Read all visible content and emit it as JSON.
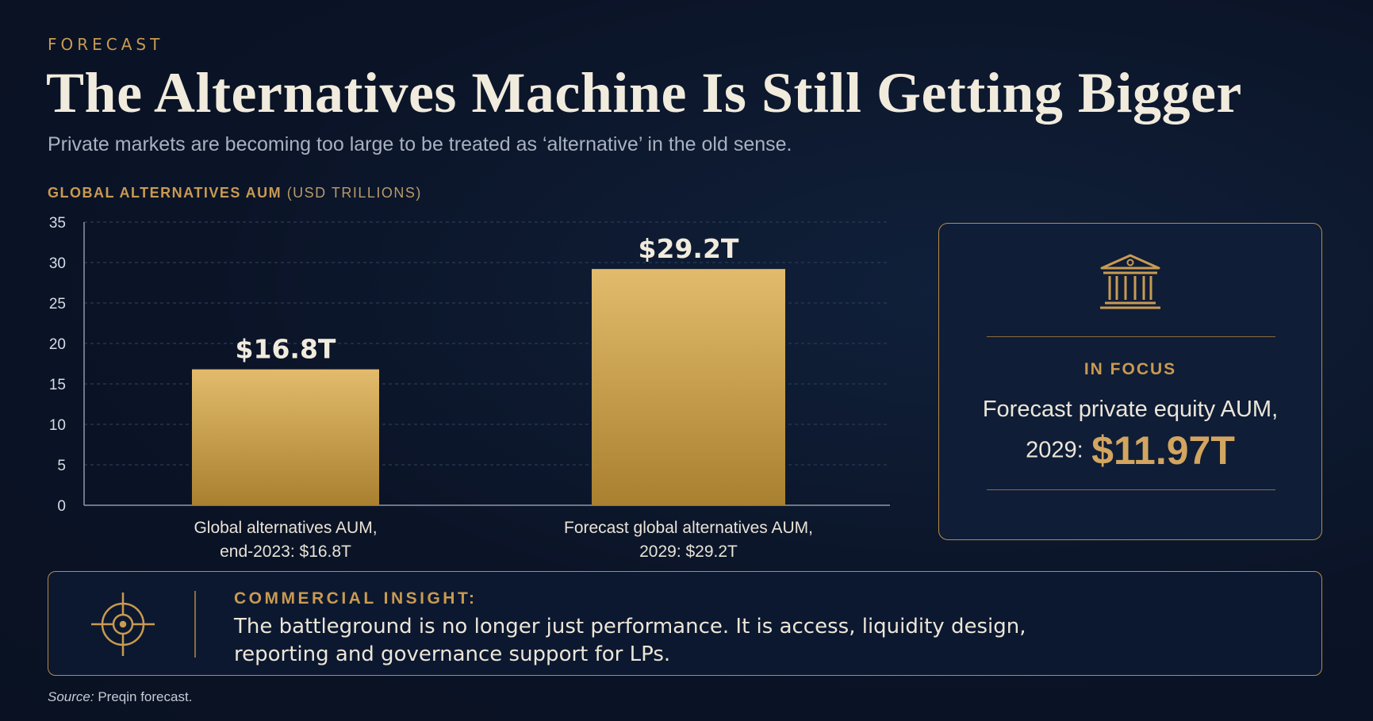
{
  "header": {
    "kicker": "FORECAST",
    "title": "The Alternatives Machine Is Still Getting Bigger",
    "subtitle": "Private markets are becoming too large to be treated as ‘alternative’ in the old sense."
  },
  "chart_data": {
    "type": "bar",
    "title": "GLOBAL ALTERNATIVES AUM",
    "title_unit": "(USD TRILLIONS)",
    "categories": [
      [
        "Global alternatives AUM,",
        "end-2023: $16.8T"
      ],
      [
        "Forecast global alternatives AUM,",
        "2029: $29.2T"
      ]
    ],
    "values": [
      16.8,
      29.2
    ],
    "data_labels": [
      "$16.8T",
      "$29.2T"
    ],
    "ylim": [
      0,
      35
    ],
    "yticks": [
      0,
      5,
      10,
      15,
      20,
      25,
      30,
      35
    ],
    "grid": true,
    "colors": {
      "bar_top": "#e2bb6c",
      "bar_bottom": "#a9802f",
      "grid": "#2a3a55",
      "axis": "#8e97a8",
      "tick_text": "#d7dbe4"
    }
  },
  "focus": {
    "icon": "bank-icon",
    "label": "IN FOCUS",
    "text": "Forecast private equity AUM,",
    "year": "2029:",
    "value": "$11.97T"
  },
  "insight": {
    "icon": "target-icon",
    "label": "COMMERCIAL INSIGHT:",
    "text_line1": "The battleground is no longer just performance. It is access, liquidity design,",
    "text_line2": "reporting and governance support for LPs."
  },
  "source": {
    "label": "Source:",
    "text": "Preqin forecast."
  },
  "colors": {
    "accent": "#c99a52",
    "background": "#0c1528"
  }
}
